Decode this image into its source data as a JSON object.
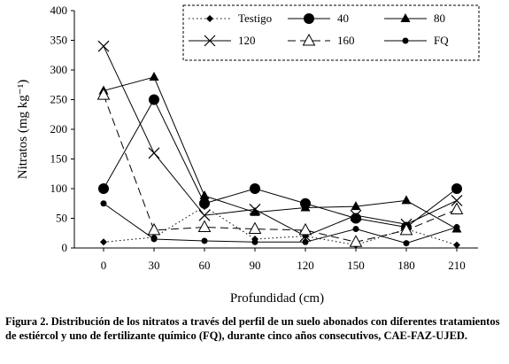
{
  "chart_data": {
    "type": "line",
    "xlabel": "Profundidad (cm)",
    "ylabel": "Nitratos (mg kg⁻¹)",
    "x": [
      0,
      30,
      60,
      90,
      120,
      150,
      180,
      210
    ],
    "x_tick_labels": [
      "0",
      "30",
      "60",
      "90",
      "120",
      "150",
      "180",
      "210"
    ],
    "ylim": [
      0,
      400
    ],
    "y_ticks": [
      0,
      50,
      100,
      150,
      200,
      250,
      300,
      350,
      400
    ],
    "legend_position": "top-right, boxed with dashed border",
    "series": [
      {
        "name": "Testigo",
        "marker": "diamond",
        "line": "dotted",
        "values": [
          10,
          18,
          70,
          15,
          20,
          5,
          32,
          5
        ]
      },
      {
        "name": "40",
        "marker": "circle",
        "line": "solid",
        "values": [
          100,
          250,
          75,
          100,
          75,
          50,
          35,
          100
        ]
      },
      {
        "name": "80",
        "marker": "triangle",
        "line": "solid",
        "values": [
          265,
          288,
          88,
          60,
          68,
          70,
          80,
          32
        ]
      },
      {
        "name": "120",
        "marker": "x",
        "line": "solid",
        "values": [
          340,
          160,
          55,
          65,
          20,
          55,
          40,
          80
        ]
      },
      {
        "name": "160",
        "marker": "open-triangle",
        "line": "dashed",
        "values": [
          258,
          30,
          35,
          32,
          30,
          10,
          30,
          65
        ]
      },
      {
        "name": "FQ",
        "marker": "small-circle",
        "line": "solid",
        "values": [
          75,
          15,
          12,
          10,
          10,
          32,
          8,
          35
        ]
      }
    ]
  },
  "caption": {
    "label": "Figura 2.",
    "text": "Distribución de los nitratos a través del perfil de un suelo abonados con diferentes tratamientos de estiércol y uno de fertilizante químico (FQ), durante cinco años consecutivos, CAE-FAZ-UJED."
  }
}
